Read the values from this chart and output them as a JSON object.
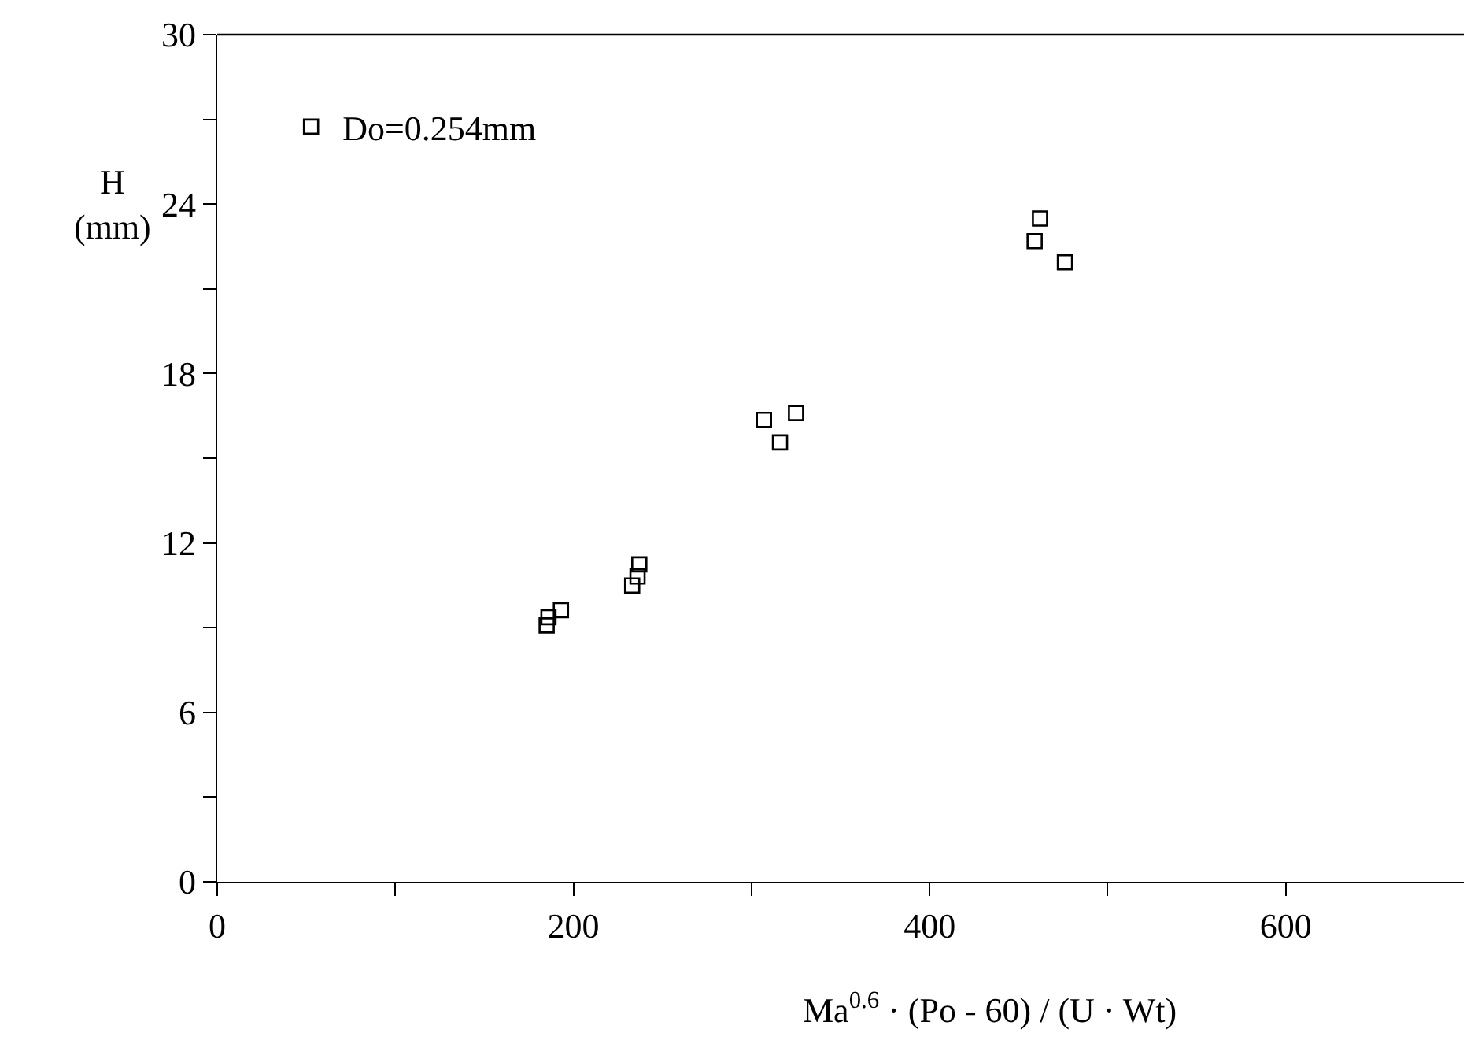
{
  "chart_data": {
    "type": "scatter",
    "xlabel": "Ma$^{0.6}$ · (Po - 60) / (U · Wt)",
    "ylabel": "H\n(mm)",
    "xlim": [
      0,
      700
    ],
    "xticks": [
      0,
      {
        "value": 100,
        "label": null
      },
      200,
      {
        "value": 300,
        "label": null
      },
      400,
      {
        "value": 500,
        "label": null
      },
      600
    ],
    "ylim": [
      0,
      30
    ],
    "yticks": [
      0,
      {
        "value": 3,
        "label": null
      },
      6,
      {
        "value": 9,
        "label": null
      },
      12,
      {
        "value": 15,
        "label": null
      },
      18,
      {
        "value": 21,
        "label": null
      },
      24,
      {
        "value": 27,
        "label": null
      },
      30
    ],
    "marker": "square",
    "legend": "top left",
    "series": [
      {
        "name": "Do=0.254mm",
        "color": "#000000",
        "x": [
          185,
          186,
          193,
          233,
          236,
          237,
          307,
          316,
          325,
          459,
          462,
          476
        ],
        "values": [
          9.08,
          9.37,
          9.62,
          10.49,
          10.81,
          11.24,
          16.36,
          15.56,
          16.6,
          22.69,
          23.49,
          21.94
        ]
      }
    ]
  }
}
